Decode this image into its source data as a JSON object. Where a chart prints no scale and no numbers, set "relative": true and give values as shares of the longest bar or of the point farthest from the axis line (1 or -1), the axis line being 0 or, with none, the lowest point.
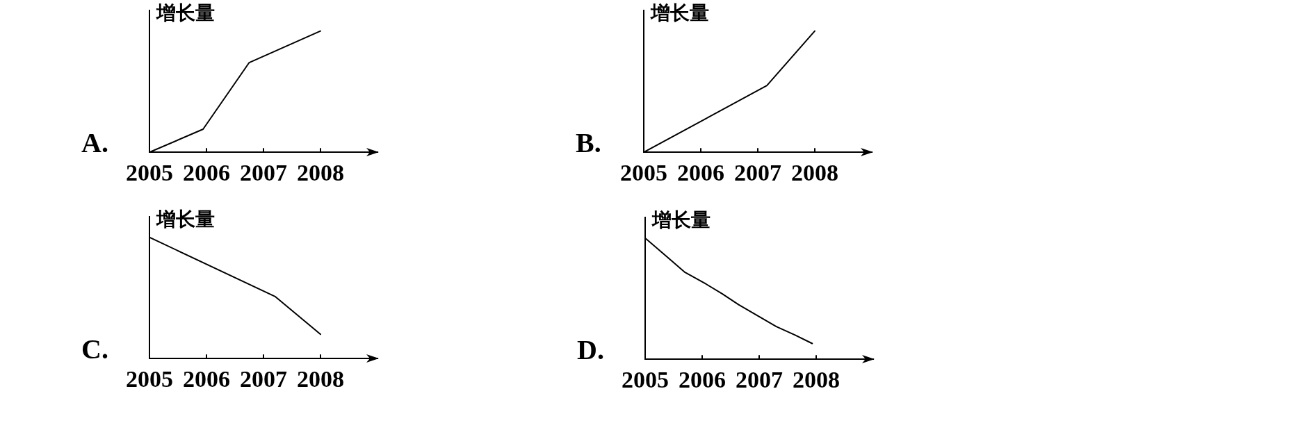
{
  "chart_data": [
    {
      "type": "line",
      "title": "A.",
      "ylabel": "增长量",
      "relative": true,
      "xlim": [
        2005,
        2009
      ],
      "xticks": [
        2005,
        2006,
        2007,
        2008
      ],
      "tick_labels": "x",
      "marker": "none",
      "x": [
        2005,
        2005.94,
        2006.75,
        2008
      ],
      "series": [
        {
          "color": "#000000",
          "values": [
            0,
            0.19,
            0.74,
            1
          ]
        }
      ]
    },
    {
      "type": "line",
      "title": "B.",
      "ylabel": "增长量",
      "relative": true,
      "xlim": [
        2005,
        2009
      ],
      "xticks": [
        2005,
        2006,
        2007,
        2008
      ],
      "tick_labels": "x",
      "marker": "none",
      "x": [
        2005,
        2007.16,
        2008
      ],
      "series": [
        {
          "color": "#000000",
          "values": [
            0,
            0.55,
            1
          ]
        }
      ]
    },
    {
      "type": "line",
      "title": "C.",
      "ylabel": "增长量",
      "relative": true,
      "xlim": [
        2005,
        2009
      ],
      "xticks": [
        2005,
        2006,
        2007,
        2008
      ],
      "tick_labels": "x",
      "marker": "none",
      "x": [
        2005,
        2007.21,
        2008
      ],
      "series": [
        {
          "color": "#000000",
          "values": [
            1,
            0.51,
            0.2
          ]
        }
      ]
    },
    {
      "type": "line",
      "title": "D.",
      "ylabel": "增长量",
      "relative": true,
      "xlim": [
        2005,
        2009
      ],
      "xticks": [
        2005,
        2006,
        2007,
        2008
      ],
      "tick_labels": "x",
      "marker": "none",
      "x": [
        2005,
        2005.32,
        2005.69,
        2006.07,
        2006.35,
        2006.64,
        2006.97,
        2007.3,
        2007.63,
        2007.93
      ],
      "series": [
        {
          "color": "#000000",
          "values": [
            1,
            0.87,
            0.72,
            0.62,
            0.54,
            0.45,
            0.36,
            0.27,
            0.2,
            0.13
          ]
        }
      ]
    }
  ]
}
